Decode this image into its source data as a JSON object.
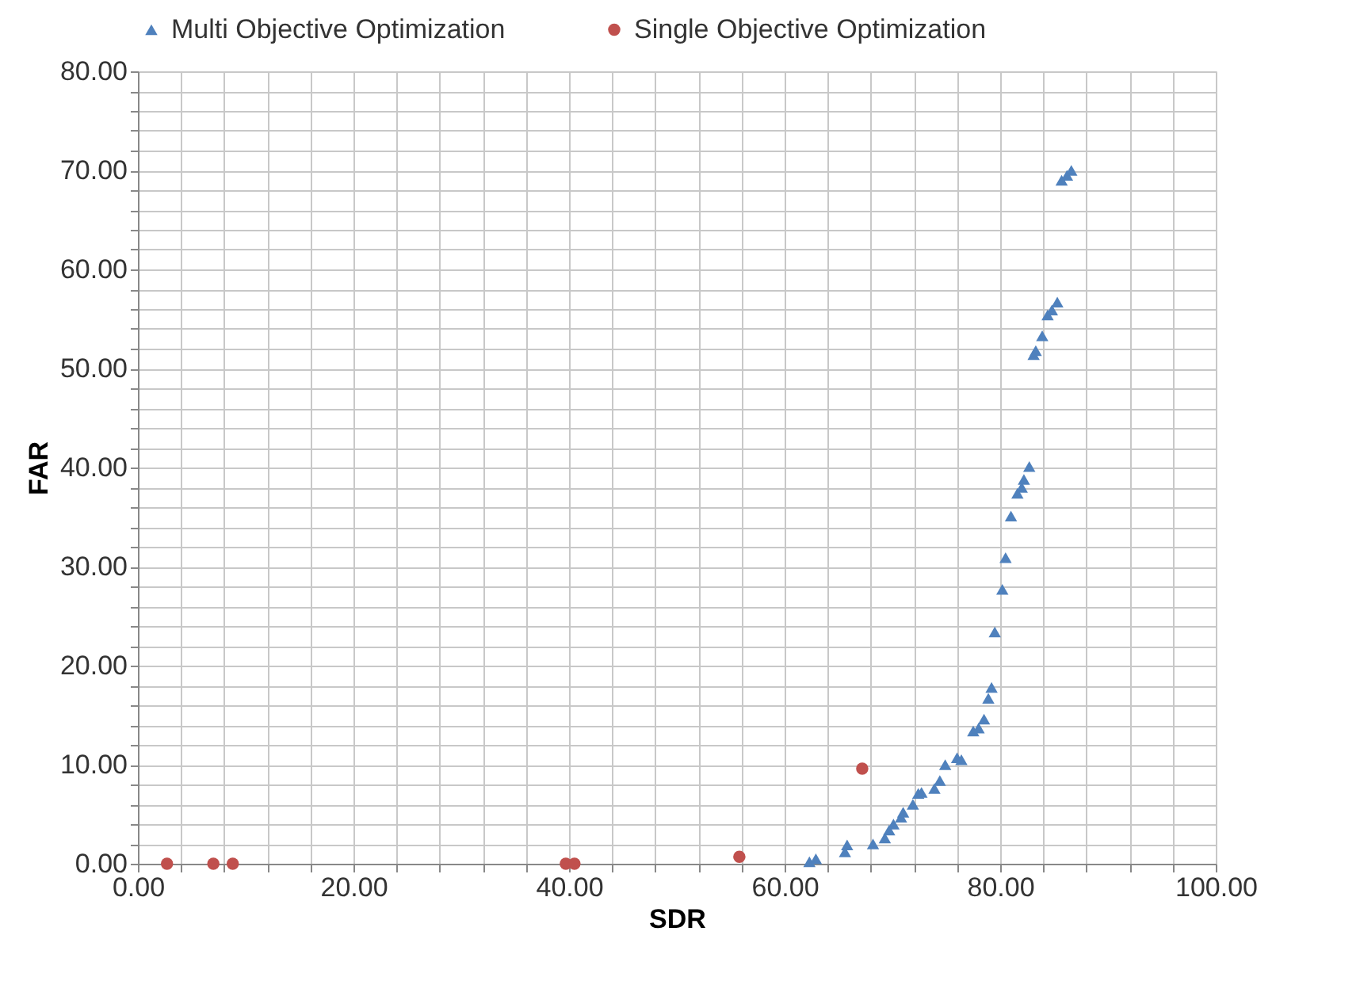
{
  "chart_data": {
    "type": "scatter",
    "xlabel": "SDR",
    "ylabel": "FAR",
    "legend": "top",
    "grid": true,
    "xlim": [
      0,
      100
    ],
    "ylim": [
      0,
      80
    ],
    "xticks": [
      {
        "value": 0,
        "label": "0.00"
      },
      {
        "value": 4,
        "label": null
      },
      {
        "value": 8,
        "label": null
      },
      {
        "value": 12,
        "label": null
      },
      {
        "value": 16,
        "label": null
      },
      {
        "value": 20,
        "label": "20.00"
      },
      {
        "value": 24,
        "label": null
      },
      {
        "value": 28,
        "label": null
      },
      {
        "value": 32,
        "label": null
      },
      {
        "value": 36,
        "label": null
      },
      {
        "value": 40,
        "label": "40.00"
      },
      {
        "value": 44,
        "label": null
      },
      {
        "value": 48,
        "label": null
      },
      {
        "value": 52,
        "label": null
      },
      {
        "value": 56,
        "label": null
      },
      {
        "value": 60,
        "label": "60.00"
      },
      {
        "value": 64,
        "label": null
      },
      {
        "value": 68,
        "label": null
      },
      {
        "value": 72,
        "label": null
      },
      {
        "value": 76,
        "label": null
      },
      {
        "value": 80,
        "label": "80.00"
      },
      {
        "value": 84,
        "label": null
      },
      {
        "value": 88,
        "label": null
      },
      {
        "value": 92,
        "label": null
      },
      {
        "value": 96,
        "label": null
      },
      {
        "value": 100,
        "label": "100.00"
      }
    ],
    "yticks": [
      {
        "value": 0,
        "label": "0.00"
      },
      {
        "value": 2,
        "label": null
      },
      {
        "value": 4,
        "label": null
      },
      {
        "value": 6,
        "label": null
      },
      {
        "value": 8,
        "label": null
      },
      {
        "value": 10,
        "label": "10.00"
      },
      {
        "value": 12,
        "label": null
      },
      {
        "value": 14,
        "label": null
      },
      {
        "value": 16,
        "label": null
      },
      {
        "value": 18,
        "label": null
      },
      {
        "value": 20,
        "label": "20.00"
      },
      {
        "value": 22,
        "label": null
      },
      {
        "value": 24,
        "label": null
      },
      {
        "value": 26,
        "label": null
      },
      {
        "value": 28,
        "label": null
      },
      {
        "value": 30,
        "label": "30.00"
      },
      {
        "value": 32,
        "label": null
      },
      {
        "value": 34,
        "label": null
      },
      {
        "value": 36,
        "label": null
      },
      {
        "value": 38,
        "label": null
      },
      {
        "value": 40,
        "label": "40.00"
      },
      {
        "value": 42,
        "label": null
      },
      {
        "value": 44,
        "label": null
      },
      {
        "value": 46,
        "label": null
      },
      {
        "value": 48,
        "label": null
      },
      {
        "value": 50,
        "label": "50.00"
      },
      {
        "value": 52,
        "label": null
      },
      {
        "value": 54,
        "label": null
      },
      {
        "value": 56,
        "label": null
      },
      {
        "value": 58,
        "label": null
      },
      {
        "value": 60,
        "label": "60.00"
      },
      {
        "value": 62,
        "label": null
      },
      {
        "value": 64,
        "label": null
      },
      {
        "value": 66,
        "label": null
      },
      {
        "value": 68,
        "label": null
      },
      {
        "value": 70,
        "label": "70.00"
      },
      {
        "value": 72,
        "label": null
      },
      {
        "value": 74,
        "label": null
      },
      {
        "value": 76,
        "label": null
      },
      {
        "value": 78,
        "label": null
      },
      {
        "value": 80,
        "label": "80.00"
      }
    ],
    "series": [
      {
        "name": "Multi Objective Optimization",
        "color": "#4f81bd",
        "marker": "triangle",
        "x": [
          62.3,
          62.9,
          65.6,
          65.8,
          68.2,
          69.3,
          69.7,
          70.1,
          70.8,
          71.0,
          71.9,
          72.4,
          72.7,
          73.9,
          74.4,
          74.9,
          76.0,
          76.4,
          77.5,
          78.0,
          78.5,
          78.9,
          79.2,
          79.5,
          80.2,
          80.5,
          81.0,
          81.6,
          82.0,
          82.2,
          82.7,
          83.1,
          83.3,
          83.9,
          84.4,
          84.8,
          85.3,
          85.7,
          86.2,
          86.6
        ],
        "values": [
          0.2,
          0.5,
          1.2,
          1.9,
          2.0,
          2.6,
          3.4,
          4.0,
          4.7,
          5.2,
          6.0,
          7.1,
          7.2,
          7.6,
          8.4,
          10.0,
          10.7,
          10.5,
          13.4,
          13.7,
          14.6,
          16.7,
          17.8,
          23.4,
          27.7,
          30.9,
          35.1,
          37.4,
          38.0,
          38.8,
          40.1,
          51.4,
          51.8,
          53.3,
          55.4,
          55.9,
          56.7,
          69.0,
          69.5,
          70.0
        ]
      },
      {
        "name": "Single Objective Optimization",
        "color": "#c0504d",
        "marker": "circle",
        "x": [
          2.7,
          7.0,
          8.8,
          39.7,
          40.5,
          55.8,
          67.2
        ],
        "values": [
          0.0,
          0.0,
          0.0,
          0.0,
          0.0,
          0.7,
          9.6
        ]
      }
    ]
  }
}
